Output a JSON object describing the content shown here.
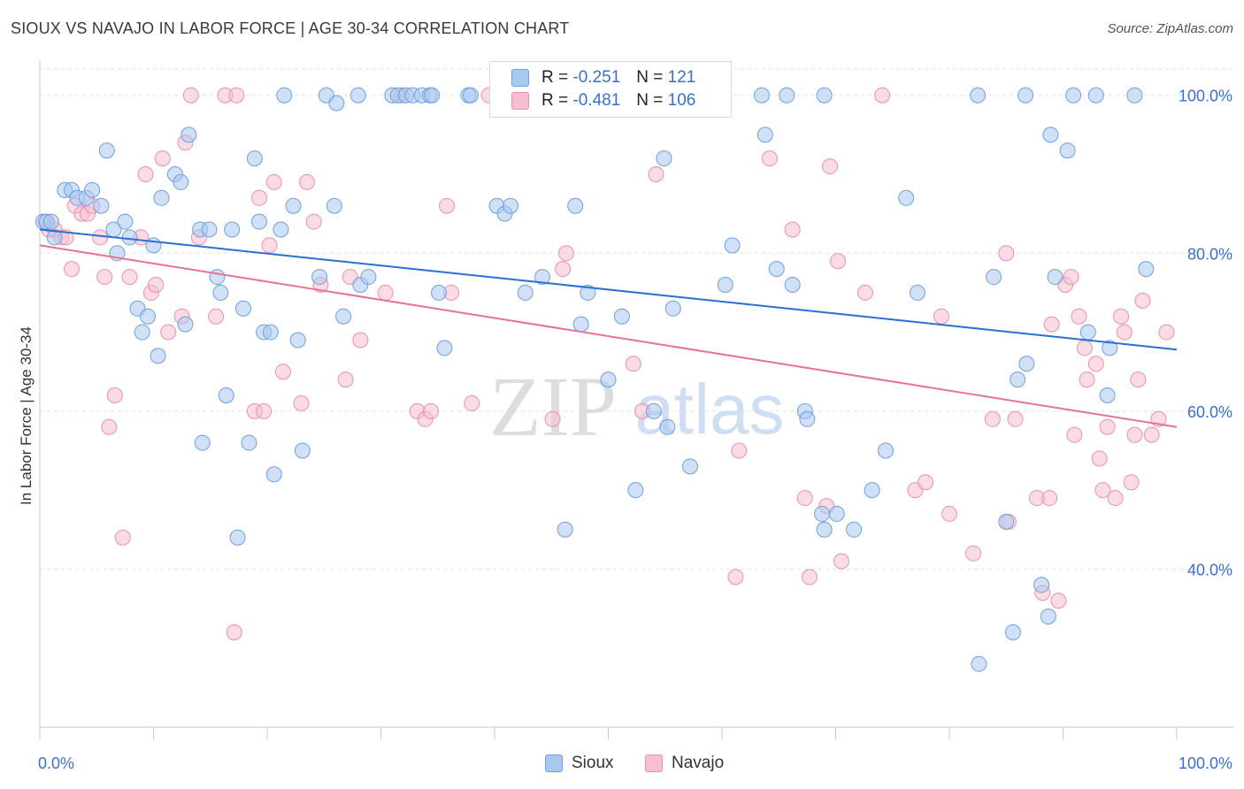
{
  "title": "SIOUX VS NAVAJO IN LABOR FORCE | AGE 30-34 CORRELATION CHART",
  "source": "Source: ZipAtlas.com",
  "watermark": {
    "zip": "ZIP",
    "atlas": "atlas"
  },
  "colors": {
    "sioux_fill": "#a9c8f0",
    "sioux_stroke": "#6f9fdc",
    "sioux_line": "#2a6fd4",
    "navajo_fill": "#f7bfd0",
    "navajo_stroke": "#ec8fae",
    "navajo_line": "#e8709a",
    "tick_label": "#3a6fd0",
    "grid": "#e2e2e2"
  },
  "legend": {
    "rows": [
      {
        "r_label": "R =",
        "r_value": "-0.251",
        "n_label": "N =",
        "n_value": "121"
      },
      {
        "r_label": "R =",
        "r_value": "-0.481",
        "n_label": "N =",
        "n_value": "106"
      }
    ],
    "bottom": [
      "Sioux",
      "Navajo"
    ]
  },
  "chart_data": {
    "type": "scatter",
    "title": "SIOUX VS NAVAJO IN LABOR FORCE | AGE 30-34 CORRELATION CHART",
    "xlabel": "",
    "ylabel": "In Labor Force | Age 30-34",
    "xlim": [
      0,
      100
    ],
    "ylim": [
      20,
      104
    ],
    "x_tick_labels": [
      "0.0%",
      "100.0%"
    ],
    "y_ticks": [
      40,
      60,
      80,
      100
    ],
    "y_tick_labels": [
      "40.0%",
      "60.0%",
      "80.0%",
      "100.0%"
    ],
    "grid": true,
    "legend_position": "top-center",
    "series": [
      {
        "name": "Sioux",
        "r": -0.251,
        "n": 121,
        "trend": {
          "x": [
            0,
            100
          ],
          "y": [
            83.0,
            67.8
          ]
        },
        "points": [
          [
            0.3,
            84
          ],
          [
            0.6,
            84
          ],
          [
            1.0,
            84
          ],
          [
            1.3,
            82
          ],
          [
            2.2,
            88
          ],
          [
            2.8,
            88
          ],
          [
            3.3,
            87
          ],
          [
            4.1,
            87
          ],
          [
            4.6,
            88
          ],
          [
            5.4,
            86
          ],
          [
            5.9,
            93
          ],
          [
            6.5,
            83
          ],
          [
            6.8,
            80
          ],
          [
            7.5,
            84
          ],
          [
            7.9,
            82
          ],
          [
            8.6,
            73
          ],
          [
            9.0,
            70
          ],
          [
            9.5,
            72
          ],
          [
            10.0,
            81
          ],
          [
            10.4,
            67
          ],
          [
            10.7,
            87
          ],
          [
            11.9,
            90
          ],
          [
            12.4,
            89
          ],
          [
            12.8,
            71
          ],
          [
            13.1,
            95
          ],
          [
            14.1,
            83
          ],
          [
            14.3,
            56
          ],
          [
            14.9,
            83
          ],
          [
            15.6,
            77
          ],
          [
            15.9,
            75
          ],
          [
            16.4,
            62
          ],
          [
            16.9,
            83
          ],
          [
            17.4,
            44
          ],
          [
            17.9,
            73
          ],
          [
            18.4,
            56
          ],
          [
            18.9,
            92
          ],
          [
            19.3,
            84
          ],
          [
            19.7,
            70
          ],
          [
            20.3,
            70
          ],
          [
            20.6,
            52
          ],
          [
            21.2,
            83
          ],
          [
            22.3,
            86
          ],
          [
            22.7,
            69
          ],
          [
            23.1,
            55
          ],
          [
            24.6,
            77
          ],
          [
            25.9,
            86
          ],
          [
            26.7,
            72
          ],
          [
            28.2,
            76
          ],
          [
            28.9,
            77
          ],
          [
            21.5,
            100
          ],
          [
            25.2,
            100
          ],
          [
            26.1,
            99
          ],
          [
            28.0,
            100
          ],
          [
            31.0,
            100
          ],
          [
            31.5,
            100
          ],
          [
            32.2,
            100
          ],
          [
            32.8,
            100
          ],
          [
            33.6,
            100
          ],
          [
            34.3,
            100
          ],
          [
            35.1,
            75
          ],
          [
            35.6,
            68
          ],
          [
            37.7,
            100
          ],
          [
            40.2,
            86
          ],
          [
            40.9,
            85
          ],
          [
            41.4,
            86
          ],
          [
            42.7,
            75
          ],
          [
            44.2,
            77
          ],
          [
            46.2,
            45
          ],
          [
            47.1,
            86
          ],
          [
            47.6,
            71
          ],
          [
            48.2,
            75
          ],
          [
            50.0,
            64
          ],
          [
            51.2,
            72
          ],
          [
            52.4,
            50
          ],
          [
            54.0,
            60
          ],
          [
            54.9,
            92
          ],
          [
            55.2,
            58
          ],
          [
            55.7,
            73
          ],
          [
            57.2,
            53
          ],
          [
            59.7,
            100
          ],
          [
            60.3,
            76
          ],
          [
            60.9,
            81
          ],
          [
            63.5,
            100
          ],
          [
            63.8,
            95
          ],
          [
            64.8,
            78
          ],
          [
            65.7,
            100
          ],
          [
            66.2,
            76
          ],
          [
            67.3,
            60
          ],
          [
            67.5,
            59
          ],
          [
            68.8,
            47
          ],
          [
            69.0,
            45
          ],
          [
            70.1,
            47
          ],
          [
            71.6,
            45
          ],
          [
            73.2,
            50
          ],
          [
            74.4,
            55
          ],
          [
            76.2,
            87
          ],
          [
            77.2,
            75
          ],
          [
            82.5,
            100
          ],
          [
            82.6,
            28
          ],
          [
            83.9,
            77
          ],
          [
            85.0,
            46
          ],
          [
            85.6,
            32
          ],
          [
            86.0,
            64
          ],
          [
            86.7,
            100
          ],
          [
            86.8,
            66
          ],
          [
            88.1,
            38
          ],
          [
            88.7,
            34
          ],
          [
            88.9,
            95
          ],
          [
            89.3,
            77
          ],
          [
            90.4,
            93
          ],
          [
            90.9,
            100
          ],
          [
            92.2,
            70
          ],
          [
            92.9,
            100
          ],
          [
            93.9,
            62
          ],
          [
            94.1,
            68
          ],
          [
            96.3,
            100
          ],
          [
            97.3,
            78
          ],
          [
            34.5,
            100
          ],
          [
            37.9,
            100
          ],
          [
            69.0,
            100
          ]
        ]
      },
      {
        "name": "Navajo",
        "r": -0.481,
        "n": 106,
        "trend": {
          "x": [
            0,
            100
          ],
          "y": [
            81.0,
            58.0
          ]
        },
        "points": [
          [
            0.5,
            84
          ],
          [
            0.8,
            83
          ],
          [
            1.3,
            83
          ],
          [
            1.9,
            82
          ],
          [
            2.3,
            82
          ],
          [
            2.8,
            78
          ],
          [
            3.1,
            86
          ],
          [
            3.7,
            85
          ],
          [
            4.2,
            85
          ],
          [
            4.6,
            86
          ],
          [
            5.3,
            82
          ],
          [
            5.7,
            77
          ],
          [
            6.1,
            58
          ],
          [
            6.6,
            62
          ],
          [
            7.3,
            44
          ],
          [
            7.9,
            77
          ],
          [
            8.9,
            82
          ],
          [
            9.3,
            90
          ],
          [
            9.8,
            75
          ],
          [
            10.2,
            76
          ],
          [
            10.8,
            92
          ],
          [
            11.3,
            70
          ],
          [
            12.5,
            72
          ],
          [
            12.8,
            94
          ],
          [
            13.3,
            100
          ],
          [
            14.0,
            82
          ],
          [
            15.5,
            72
          ],
          [
            16.3,
            100
          ],
          [
            17.1,
            32
          ],
          [
            17.3,
            100
          ],
          [
            18.9,
            60
          ],
          [
            19.3,
            87
          ],
          [
            19.7,
            60
          ],
          [
            20.2,
            81
          ],
          [
            20.6,
            89
          ],
          [
            21.4,
            65
          ],
          [
            23.0,
            61
          ],
          [
            23.5,
            89
          ],
          [
            24.1,
            84
          ],
          [
            24.7,
            76
          ],
          [
            26.9,
            64
          ],
          [
            27.3,
            77
          ],
          [
            28.2,
            69
          ],
          [
            30.4,
            75
          ],
          [
            33.2,
            60
          ],
          [
            33.9,
            59
          ],
          [
            34.4,
            60
          ],
          [
            35.8,
            86
          ],
          [
            36.2,
            75
          ],
          [
            38.0,
            61
          ],
          [
            39.5,
            100
          ],
          [
            45.1,
            59
          ],
          [
            46.0,
            78
          ],
          [
            46.3,
            80
          ],
          [
            52.2,
            66
          ],
          [
            53.0,
            60
          ],
          [
            54.2,
            90
          ],
          [
            61.2,
            39
          ],
          [
            61.5,
            55
          ],
          [
            64.2,
            92
          ],
          [
            66.2,
            83
          ],
          [
            67.3,
            49
          ],
          [
            67.7,
            39
          ],
          [
            69.2,
            48
          ],
          [
            70.2,
            79
          ],
          [
            70.5,
            41
          ],
          [
            72.6,
            75
          ],
          [
            77.0,
            50
          ],
          [
            77.9,
            51
          ],
          [
            79.3,
            72
          ],
          [
            80.0,
            47
          ],
          [
            82.1,
            42
          ],
          [
            83.8,
            59
          ],
          [
            85.0,
            80
          ],
          [
            85.2,
            46
          ],
          [
            85.8,
            59
          ],
          [
            87.7,
            49
          ],
          [
            88.2,
            37
          ],
          [
            88.8,
            49
          ],
          [
            89.0,
            71
          ],
          [
            89.6,
            36
          ],
          [
            90.2,
            76
          ],
          [
            90.7,
            77
          ],
          [
            91.0,
            57
          ],
          [
            91.4,
            72
          ],
          [
            91.9,
            68
          ],
          [
            92.1,
            64
          ],
          [
            92.9,
            66
          ],
          [
            93.2,
            54
          ],
          [
            93.5,
            50
          ],
          [
            93.9,
            58
          ],
          [
            94.6,
            49
          ],
          [
            95.1,
            72
          ],
          [
            95.4,
            70
          ],
          [
            96.0,
            51
          ],
          [
            96.3,
            57
          ],
          [
            96.6,
            64
          ],
          [
            97.0,
            74
          ],
          [
            97.8,
            57
          ],
          [
            98.4,
            59
          ],
          [
            99.1,
            70
          ],
          [
            31.8,
            100
          ],
          [
            74.1,
            100
          ],
          [
            43.9,
            100
          ],
          [
            69.5,
            91
          ],
          [
            59.9,
            100
          ]
        ]
      }
    ]
  }
}
